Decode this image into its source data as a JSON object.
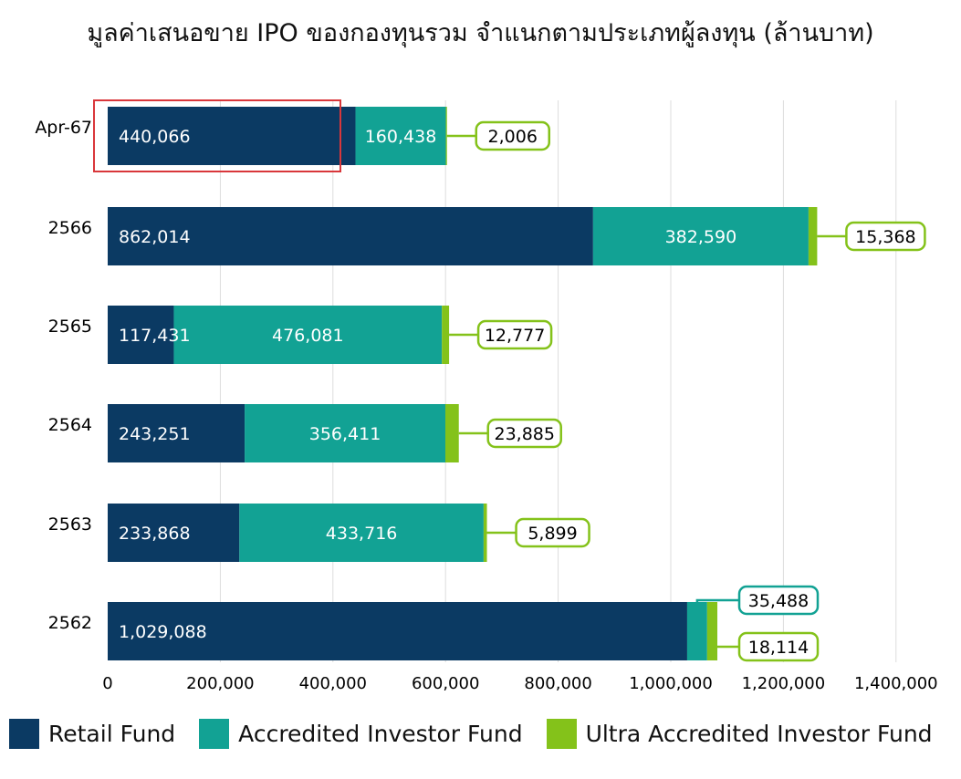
{
  "colors": {
    "retail": "#0b3a63",
    "accredited": "#12a294",
    "ultra": "#84c21a",
    "grid": "#dddddd",
    "highlight": "#d9373b"
  },
  "chart_data": {
    "type": "bar",
    "orientation": "horizontal",
    "stacked": true,
    "title": "มูลค่าเสนอขาย IPO ของกองทุนรวม จำแนกตามประเภทผู้ลงทุน (ล้านบาท)",
    "categories": [
      "Apr-67",
      "2566",
      "2565",
      "2564",
      "2563",
      "2562"
    ],
    "series": [
      {
        "name": "Retail Fund",
        "values": [
          440066,
          862014,
          117431,
          243251,
          233868,
          1029088
        ],
        "labels": [
          "440,066",
          "862,014",
          "117,431",
          "243,251",
          "233,868",
          "1,029,088"
        ]
      },
      {
        "name": "Accredited Investor Fund",
        "values": [
          160438,
          382590,
          476081,
          356411,
          433716,
          35488
        ],
        "labels": [
          "160,438",
          "382,590",
          "476,081",
          "356,411",
          "433,716",
          "35,488"
        ]
      },
      {
        "name": "Ultra Accredited Investor Fund",
        "values": [
          2006,
          15368,
          12777,
          23885,
          5899,
          18114
        ],
        "labels": [
          "2,006",
          "15,368",
          "12,777",
          "23,885",
          "5,899",
          "18,114"
        ]
      }
    ],
    "xlim": [
      0,
      1400000
    ],
    "xticks": [
      0,
      200000,
      400000,
      600000,
      800000,
      1000000,
      1200000,
      1400000
    ],
    "xtick_labels": [
      "0",
      "200,000",
      "400,000",
      "600,000",
      "800,000",
      "1,000,000",
      "1,200,000",
      "1,400,000"
    ],
    "grid": true,
    "legend_position": "bottom",
    "highlighted_category": "Apr-67"
  }
}
